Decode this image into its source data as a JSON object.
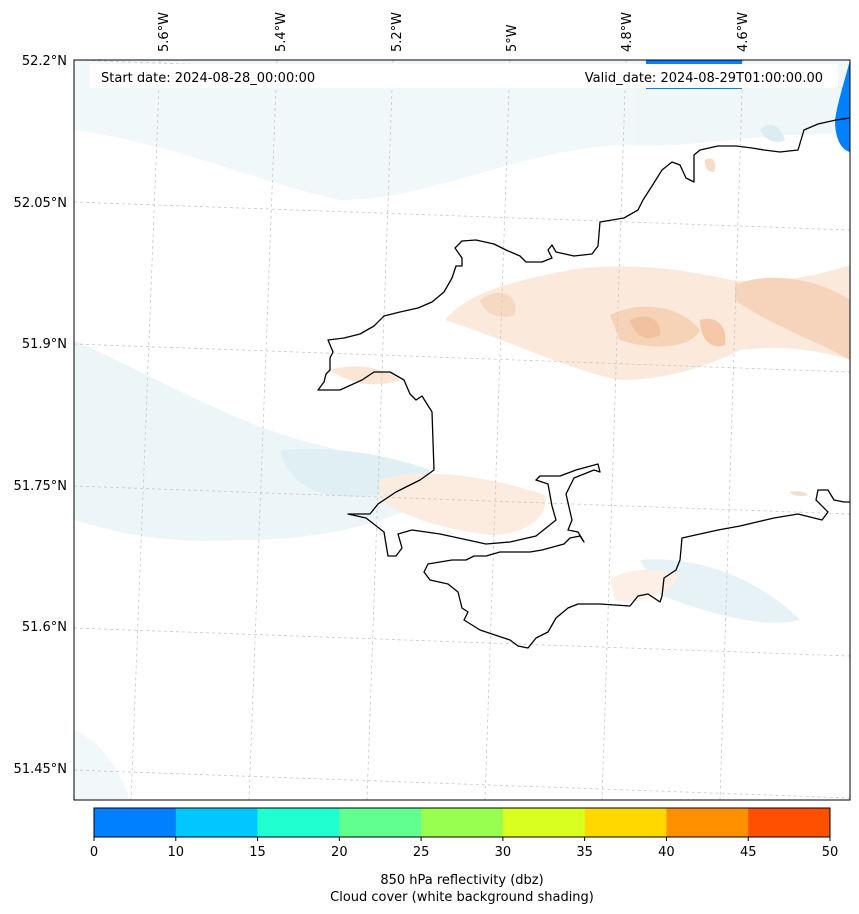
{
  "map": {
    "start_date_text": "Start date: 2024-08-28_00:00:00",
    "valid_date_text": "Valid_date: 2024-08-29T01:00:00.00",
    "longitude_labels": [
      "5.6°W",
      "5.4°W",
      "5.2°W",
      "5°W",
      "4.8°W",
      "4.6°W"
    ],
    "latitude_labels": [
      "52.2°N",
      "52.05°N",
      "51.9°N",
      "51.75°N",
      "51.6°N",
      "51.45°N"
    ],
    "gridlines": true,
    "coastline_color": "#000000"
  },
  "colorbar": {
    "ticks": [
      "0",
      "10",
      "15",
      "20",
      "25",
      "30",
      "35",
      "40",
      "45",
      "50"
    ],
    "colors": [
      "#0080ff",
      "#00c8ff",
      "#20ffd0",
      "#60ff90",
      "#98ff50",
      "#d8ff20",
      "#ffd800",
      "#ff9000",
      "#ff5000"
    ],
    "title_line1": "850 hPa reflectivity (dbz)",
    "title_line2": "Cloud cover (white background shading)"
  }
}
